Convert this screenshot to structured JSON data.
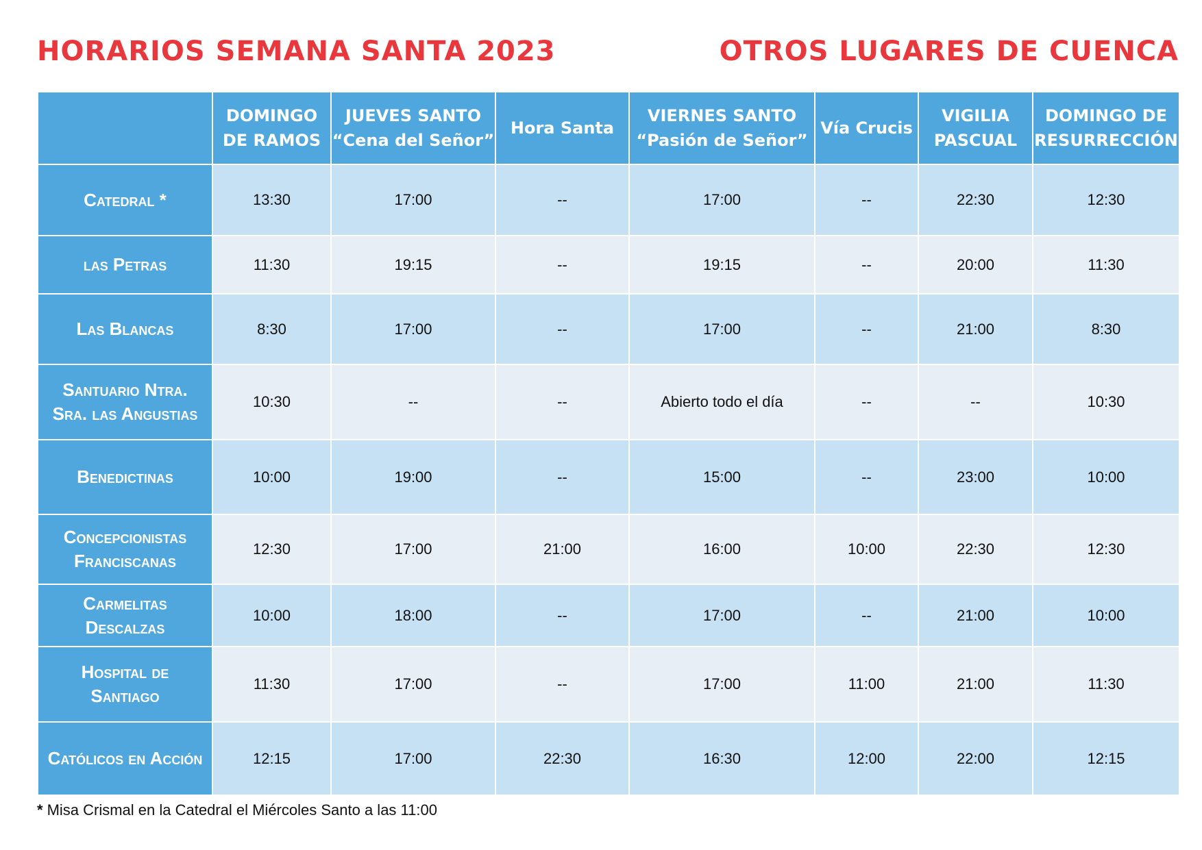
{
  "header": {
    "title": "HORARIOS SEMANA SANTA 2023",
    "subtitle": "OTROS LUGARES DE CUENCA"
  },
  "table": {
    "columns": [
      [
        "DOMINGO",
        "DE RAMOS"
      ],
      [
        "JUEVES SANTO",
        "“Cena del Señor”"
      ],
      [
        "Hora Santa"
      ],
      [
        "VIERNES SANTO",
        "“Pasión de Señor”"
      ],
      [
        "Vía Crucis"
      ],
      [
        "VIGILIA",
        "PASCUAL"
      ],
      [
        "DOMINGO DE",
        "RESURRECCIÓN"
      ]
    ],
    "rows": [
      {
        "label": [
          "Catedral *"
        ],
        "cells": [
          "13:30",
          "17:00",
          "--",
          "17:00",
          "--",
          "22:30",
          "12:30"
        ]
      },
      {
        "label": [
          "las Petras"
        ],
        "cells": [
          "11:30",
          "19:15",
          "--",
          "19:15",
          "--",
          "20:00",
          "11:30"
        ]
      },
      {
        "label": [
          "Las Blancas"
        ],
        "cells": [
          "8:30",
          "17:00",
          "--",
          "17:00",
          "--",
          "21:00",
          "8:30"
        ]
      },
      {
        "label": [
          "Santuario Ntra.",
          "Sra. las Angustias"
        ],
        "cells": [
          "10:30",
          "--",
          "--",
          "Abierto todo el día",
          "--",
          "--",
          "10:30"
        ]
      },
      {
        "label": [
          "Benedictinas"
        ],
        "cells": [
          "10:00",
          "19:00",
          "--",
          "15:00",
          "--",
          "23:00",
          "10:00"
        ]
      },
      {
        "label": [
          "Concepcionistas",
          "Franciscanas"
        ],
        "cells": [
          "12:30",
          "17:00",
          "21:00",
          "16:00",
          "10:00",
          "22:30",
          "12:30"
        ]
      },
      {
        "label": [
          "Carmelitas",
          "Descalzas"
        ],
        "cells": [
          "10:00",
          "18:00",
          "--",
          "17:00",
          "--",
          "21:00",
          "10:00"
        ]
      },
      {
        "label": [
          "Hospital de",
          "Santiago"
        ],
        "cells": [
          "11:30",
          "17:00",
          "--",
          "17:00",
          "11:00",
          "21:00",
          "11:30"
        ]
      },
      {
        "label": [
          "Católicos en Acción"
        ],
        "cells": [
          "12:15",
          "17:00",
          "22:30",
          "16:30",
          "12:00",
          "22:00",
          "12:15"
        ]
      }
    ]
  },
  "footnote": {
    "mark": "*",
    "text": "Misa Crismal en la Catedral el Miércoles Santo a las 11:00"
  }
}
